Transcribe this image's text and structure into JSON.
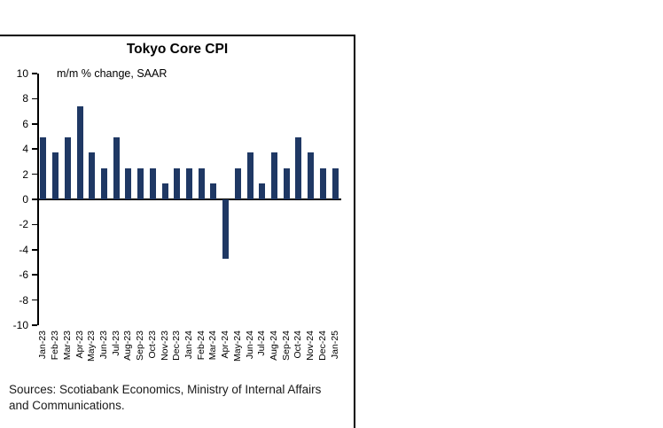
{
  "chart_data": {
    "type": "bar",
    "title": "Tokyo Core CPI",
    "subtitle": "m/m % change, SAAR",
    "categories": [
      "Jan-23",
      "Feb-23",
      "Mar-23",
      "Apr-23",
      "May-23",
      "Jun-23",
      "Jul-23",
      "Aug-23",
      "Sep-23",
      "Oct-23",
      "Nov-23",
      "Dec-23",
      "Jan-24",
      "Feb-24",
      "Mar-24",
      "Apr-24",
      "May-24",
      "Jun-24",
      "Jul-24",
      "Aug-24",
      "Sep-24",
      "Oct-24",
      "Nov-24",
      "Dec-24",
      "Jan-25"
    ],
    "values": [
      4.9,
      3.7,
      4.9,
      7.4,
      3.7,
      2.5,
      4.9,
      2.5,
      2.5,
      2.5,
      1.3,
      2.5,
      2.5,
      2.5,
      1.3,
      -4.7,
      2.5,
      3.7,
      1.3,
      3.7,
      2.5,
      4.9,
      3.7,
      2.5,
      2.5
    ],
    "ylim": [
      -10,
      10
    ],
    "ytick_step": 2,
    "bar_color": "#1f3864",
    "grid": false,
    "legend": "none",
    "sources": "Sources: Scotiabank Economics, Ministry of Internal Affairs and Communications."
  }
}
